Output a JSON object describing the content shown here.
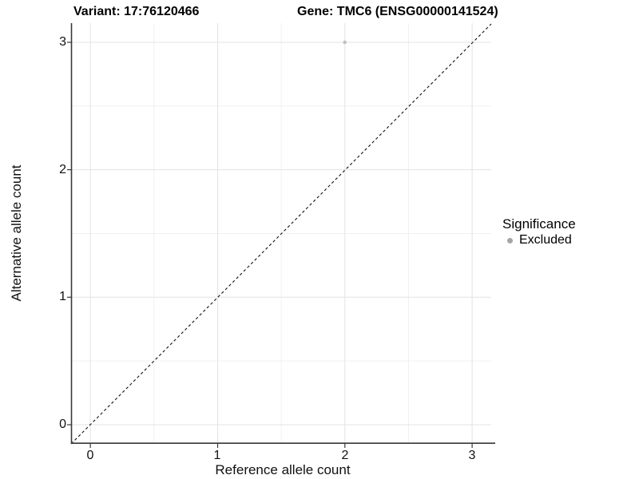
{
  "titles": {
    "variant": "Variant: 17:76120466",
    "gene": "Gene: TMC6 (ENSG00000141524)"
  },
  "axes": {
    "x": {
      "label": "Reference allele count",
      "ticks": [
        "0",
        "1",
        "2",
        "3"
      ]
    },
    "y": {
      "label": "Alternative allele count",
      "ticks": [
        "0",
        "1",
        "2",
        "3"
      ]
    }
  },
  "legend": {
    "title": "Significance",
    "items": [
      {
        "label": "Excluded",
        "color": "#a6a6a6"
      }
    ]
  },
  "colors": {
    "background": "#ffffff",
    "grid_major": "#e3e3e3",
    "grid_minor": "#f0f0f0",
    "axis_line": "#383838",
    "identity_line": "#111111",
    "point": "#c2c2c2"
  },
  "chart_data": {
    "type": "scatter",
    "title": "Variant: 17:76120466 | Gene: TMC6 (ENSG00000141524)",
    "xlabel": "Reference allele count",
    "ylabel": "Alternative allele count",
    "xlim": [
      -0.15,
      3.15
    ],
    "ylim": [
      -0.15,
      3.15
    ],
    "xticks": [
      0,
      1,
      2,
      3
    ],
    "yticks": [
      0,
      1,
      2,
      3
    ],
    "grid": "major at integers, minor at 0.5 steps, light grey on white panel",
    "legend_position": "right",
    "legend_title": "Significance",
    "series": [
      {
        "name": "Excluded",
        "color": "#c2c2c2",
        "points": [
          {
            "x": 2,
            "y": 3
          }
        ]
      }
    ],
    "reference_line": {
      "type": "identity y=x",
      "style": "dashed",
      "color": "#111111"
    }
  }
}
